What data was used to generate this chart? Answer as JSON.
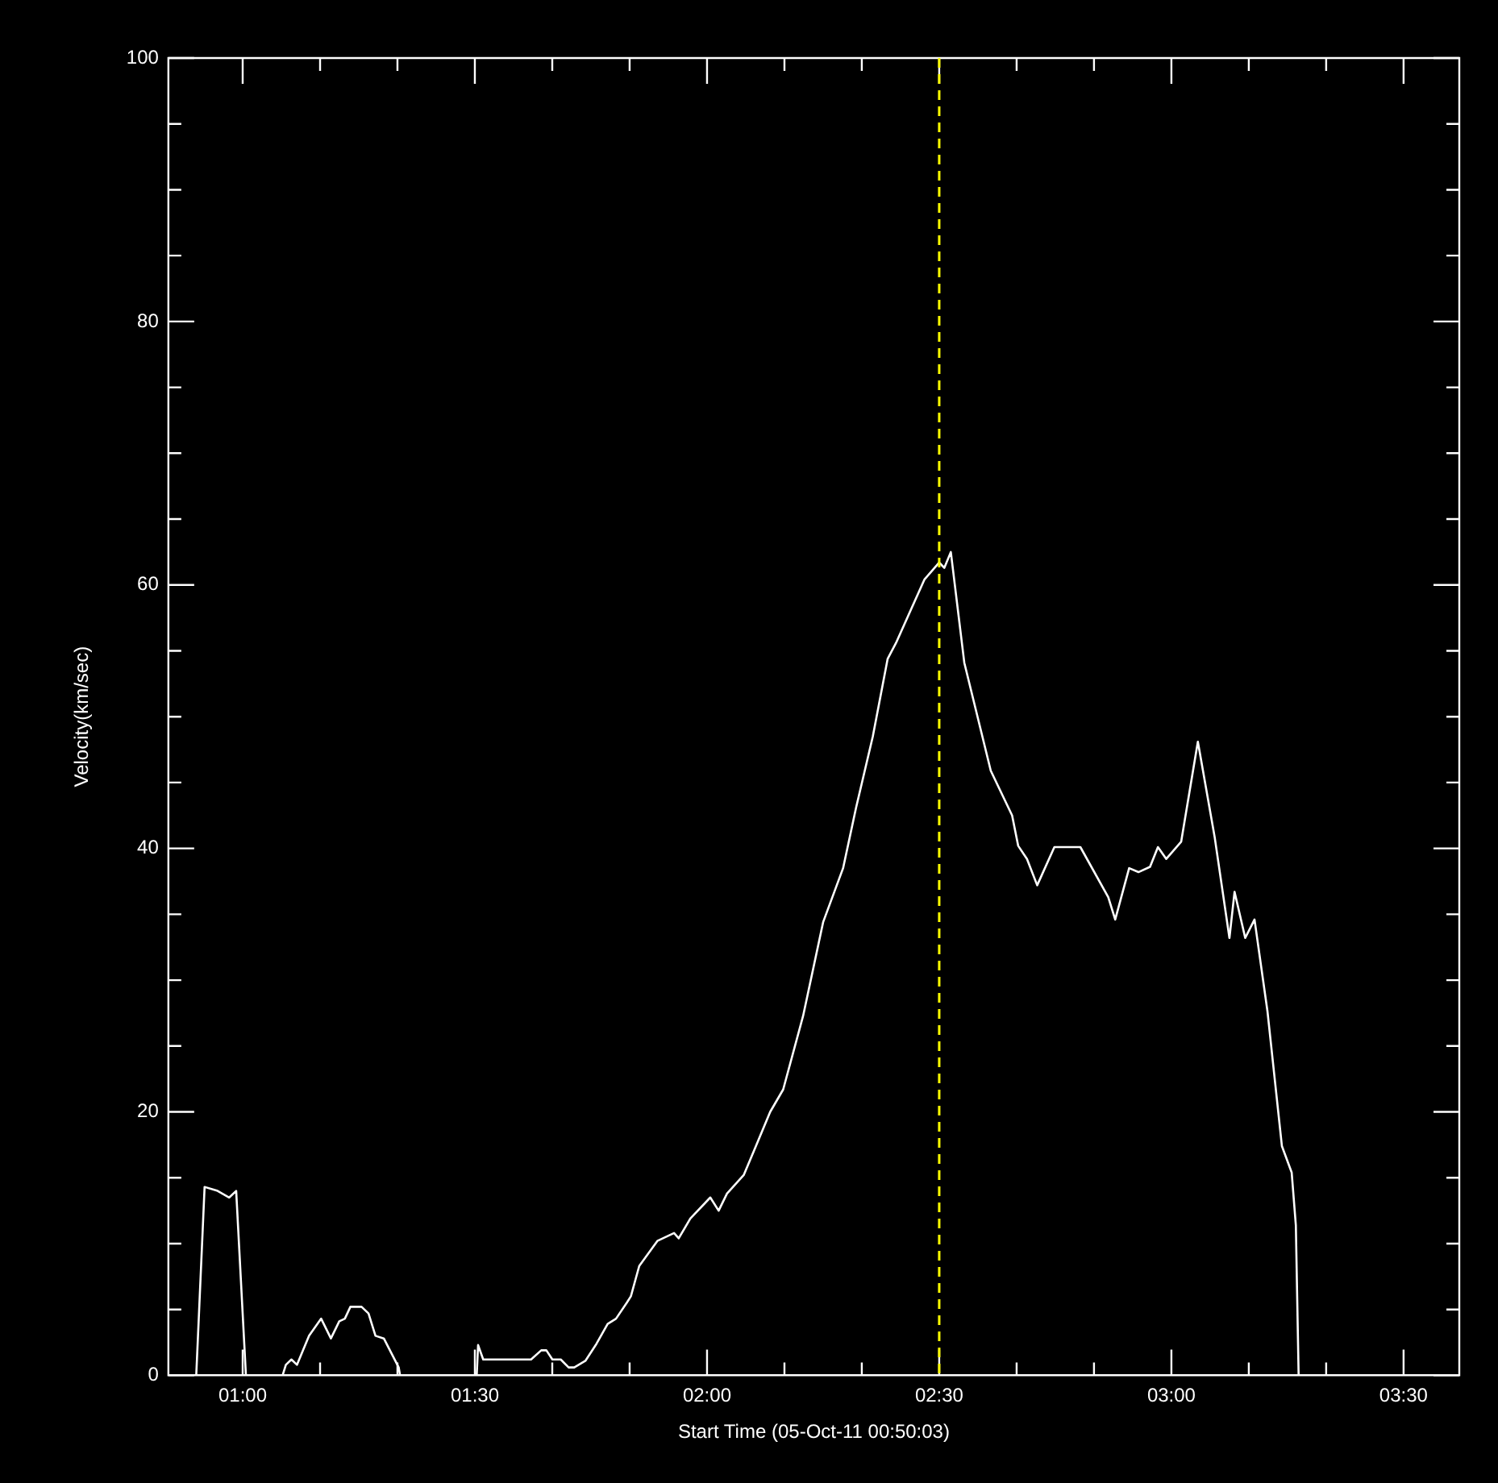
{
  "chart_data": {
    "type": "line",
    "xlabel": "Start Time (05-Oct-11 00:50:03)",
    "ylabel": "Velocity(km/sec)",
    "xlim": [
      0.84,
      3.62
    ],
    "ylim": [
      0,
      100
    ],
    "xticks": [
      {
        "value": 1,
        "label": "01:00"
      },
      {
        "value": 1.1667,
        "label": null
      },
      {
        "value": 1.3333,
        "label": null
      },
      {
        "value": 1.5,
        "label": "01:30"
      },
      {
        "value": 1.6667,
        "label": null
      },
      {
        "value": 1.8333,
        "label": null
      },
      {
        "value": 2,
        "label": "02:00"
      },
      {
        "value": 2.1667,
        "label": null
      },
      {
        "value": 2.3333,
        "label": null
      },
      {
        "value": 2.5,
        "label": "02:30"
      },
      {
        "value": 2.6667,
        "label": null
      },
      {
        "value": 2.8333,
        "label": null
      },
      {
        "value": 3,
        "label": "03:00"
      },
      {
        "value": 3.1667,
        "label": null
      },
      {
        "value": 3.3333,
        "label": null
      },
      {
        "value": 3.5,
        "label": "03:30"
      }
    ],
    "yticks": [
      0,
      {
        "value": 5,
        "label": null
      },
      {
        "value": 10,
        "label": null
      },
      {
        "value": 15,
        "label": null
      },
      20,
      {
        "value": 25,
        "label": null
      },
      {
        "value": 30,
        "label": null
      },
      {
        "value": 35,
        "label": null
      },
      40,
      {
        "value": 45,
        "label": null
      },
      {
        "value": 50,
        "label": null
      },
      {
        "value": 55,
        "label": null
      },
      60,
      {
        "value": 65,
        "label": null
      },
      {
        "value": 70,
        "label": null
      },
      {
        "value": 75,
        "label": null
      },
      80,
      {
        "value": 85,
        "label": null
      },
      {
        "value": 90,
        "label": null
      },
      {
        "value": 95,
        "label": null
      },
      100
    ],
    "grid": false,
    "legend": false,
    "marker": "none",
    "line_style": "solid",
    "ref_lines": [
      {
        "axis": "x",
        "value": 2.5,
        "color": "#ffff00",
        "line_style": "dashed"
      }
    ],
    "series": [
      {
        "color": "#ffffff",
        "x": [
          0.9,
          0.918,
          0.946,
          0.971,
          0.986,
          1.007,
          1.086,
          1.093,
          1.105,
          1.117,
          1.143,
          1.169,
          1.19,
          1.208,
          1.22,
          1.232,
          1.256,
          1.271,
          1.286,
          1.304,
          1.336,
          1.339,
          1.504,
          1.507,
          1.518,
          1.621,
          1.643,
          1.654,
          1.667,
          1.685,
          1.702,
          1.714,
          1.738,
          1.762,
          1.786,
          1.804,
          1.827,
          1.836,
          1.854,
          1.893,
          1.929,
          1.939,
          1.964,
          2.007,
          2.025,
          2.043,
          2.079,
          2.104,
          2.136,
          2.164,
          2.207,
          2.25,
          2.293,
          2.321,
          2.357,
          2.389,
          2.407,
          2.468,
          2.5,
          2.511,
          2.525,
          2.554,
          2.611,
          2.657,
          2.67,
          2.689,
          2.711,
          2.748,
          2.804,
          2.864,
          2.879,
          2.909,
          2.929,
          2.954,
          2.971,
          2.989,
          3.021,
          3.057,
          3.093,
          3.125,
          3.136,
          3.159,
          3.179,
          3.207,
          3.238,
          3.259,
          3.268,
          3.274
        ],
        "values": [
          0,
          14.3,
          14,
          13.5,
          14,
          0,
          0,
          0.8,
          1.2,
          0.8,
          3,
          4.3,
          2.8,
          4.1,
          4.3,
          5.2,
          5.2,
          4.7,
          3,
          2.8,
          0.6,
          0,
          0,
          2.3,
          1.2,
          1.2,
          1.9,
          1.9,
          1.2,
          1.2,
          0.6,
          0.6,
          1.1,
          2.4,
          3.9,
          4.3,
          5.5,
          6,
          8.3,
          10.2,
          10.8,
          10.4,
          11.9,
          13.5,
          12.5,
          13.8,
          15.2,
          17.3,
          20,
          21.7,
          27.3,
          34.4,
          38.5,
          43.1,
          48.5,
          54.4,
          55.6,
          60.4,
          61.7,
          61.3,
          62.5,
          54.1,
          45.9,
          42.5,
          40.2,
          39.2,
          37.2,
          40.1,
          40.1,
          36.3,
          34.6,
          38.5,
          38.2,
          38.6,
          40.1,
          39.2,
          40.5,
          48.1,
          40.9,
          33.2,
          36.7,
          33.2,
          34.6,
          27.6,
          17.4,
          15.4,
          11.4,
          0
        ]
      }
    ]
  }
}
